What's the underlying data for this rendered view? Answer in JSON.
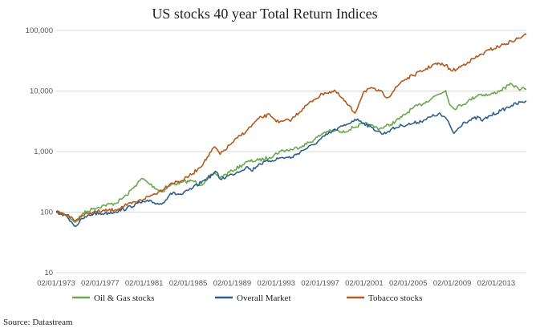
{
  "chart_data": {
    "type": "line",
    "title": "US stocks 40 year Total Return Indices",
    "y_scale": "log",
    "ylim": [
      10,
      100000
    ],
    "y_ticks": [
      {
        "value": 10,
        "label": "10"
      },
      {
        "value": 100,
        "label": "100"
      },
      {
        "value": 1000,
        "label": "1,000"
      },
      {
        "value": 10000,
        "label": "10,000"
      },
      {
        "value": 100000,
        "label": "100,000"
      }
    ],
    "xlim": [
      "1973-01-02",
      "2015-10-01"
    ],
    "x_ticks": [
      {
        "value": "1973-01-02",
        "label": "02/01/1973"
      },
      {
        "value": "1977-01-02",
        "label": "02/01/1977"
      },
      {
        "value": "1981-01-02",
        "label": "02/01/1981"
      },
      {
        "value": "1985-01-02",
        "label": "02/01/1985"
      },
      {
        "value": "1989-01-02",
        "label": "02/01/1989"
      },
      {
        "value": "1993-01-02",
        "label": "02/01/1993"
      },
      {
        "value": "1997-01-02",
        "label": "02/01/1997"
      },
      {
        "value": "2001-01-02",
        "label": "02/01/2001"
      },
      {
        "value": "2005-01-02",
        "label": "02/01/2005"
      },
      {
        "value": "2009-01-02",
        "label": "02/01/2009"
      },
      {
        "value": "2013-01-02",
        "label": "02/01/2013"
      }
    ],
    "grid": "horizontal",
    "legend_position": "bottom",
    "series": [
      {
        "name": "Oil & Gas stocks",
        "color": "#6aa84f",
        "points": [
          [
            "1973-01-02",
            100
          ],
          [
            "1973-07-01",
            95
          ],
          [
            "1974-01-01",
            90
          ],
          [
            "1974-10-01",
            68
          ],
          [
            "1975-06-01",
            95
          ],
          [
            "1976-06-01",
            115
          ],
          [
            "1977-06-01",
            130
          ],
          [
            "1978-06-01",
            140
          ],
          [
            "1979-06-01",
            190
          ],
          [
            "1980-03-01",
            270
          ],
          [
            "1980-11-01",
            360
          ],
          [
            "1981-06-01",
            300
          ],
          [
            "1982-08-01",
            215
          ],
          [
            "1983-06-01",
            280
          ],
          [
            "1984-06-01",
            310
          ],
          [
            "1985-06-01",
            330
          ],
          [
            "1986-03-01",
            280
          ],
          [
            "1987-06-01",
            450
          ],
          [
            "1987-12-01",
            370
          ],
          [
            "1989-01-01",
            480
          ],
          [
            "1990-06-01",
            680
          ],
          [
            "1991-06-01",
            720
          ],
          [
            "1992-06-01",
            800
          ],
          [
            "1993-06-01",
            1020
          ],
          [
            "1994-06-01",
            1080
          ],
          [
            "1995-06-01",
            1250
          ],
          [
            "1996-06-01",
            1550
          ],
          [
            "1997-06-01",
            2100
          ],
          [
            "1998-06-01",
            2250
          ],
          [
            "1999-01-01",
            2050
          ],
          [
            "2000-01-01",
            2500
          ],
          [
            "2001-01-01",
            2900
          ],
          [
            "2002-06-01",
            2400
          ],
          [
            "2003-06-01",
            2800
          ],
          [
            "2004-06-01",
            3700
          ],
          [
            "2005-06-01",
            5200
          ],
          [
            "2006-06-01",
            6300
          ],
          [
            "2007-06-01",
            8200
          ],
          [
            "2008-06-01",
            10200
          ],
          [
            "2008-11-01",
            5800
          ],
          [
            "2009-03-01",
            5100
          ],
          [
            "2010-06-01",
            6700
          ],
          [
            "2011-06-01",
            8800
          ],
          [
            "2012-06-01",
            8600
          ],
          [
            "2013-06-01",
            10300
          ],
          [
            "2014-06-01",
            13000
          ],
          [
            "2015-01-01",
            11000
          ],
          [
            "2015-10-01",
            10800
          ]
        ]
      },
      {
        "name": "Overall Market",
        "color": "#2e5f8a",
        "points": [
          [
            "1973-01-02",
            100
          ],
          [
            "1973-07-01",
            92
          ],
          [
            "1974-01-01",
            85
          ],
          [
            "1974-10-01",
            58
          ],
          [
            "1975-06-01",
            78
          ],
          [
            "1976-06-01",
            95
          ],
          [
            "1977-06-01",
            95
          ],
          [
            "1978-06-01",
            102
          ],
          [
            "1979-06-01",
            115
          ],
          [
            "1980-06-01",
            140
          ],
          [
            "1981-06-01",
            150
          ],
          [
            "1982-08-01",
            135
          ],
          [
            "1983-06-01",
            205
          ],
          [
            "1984-06-01",
            195
          ],
          [
            "1985-06-01",
            250
          ],
          [
            "1986-06-01",
            330
          ],
          [
            "1987-08-01",
            460
          ],
          [
            "1987-12-01",
            350
          ],
          [
            "1989-01-01",
            420
          ],
          [
            "1990-06-01",
            560
          ],
          [
            "1990-10-01",
            480
          ],
          [
            "1991-06-01",
            620
          ],
          [
            "1992-06-01",
            700
          ],
          [
            "1993-06-01",
            790
          ],
          [
            "1994-06-01",
            800
          ],
          [
            "1995-06-01",
            1050
          ],
          [
            "1996-06-01",
            1300
          ],
          [
            "1997-06-01",
            1800
          ],
          [
            "1998-06-01",
            2300
          ],
          [
            "1999-06-01",
            2800
          ],
          [
            "2000-03-01",
            3400
          ],
          [
            "2000-09-01",
            3200
          ],
          [
            "2001-09-01",
            2500
          ],
          [
            "2002-10-01",
            1950
          ],
          [
            "2003-06-01",
            2300
          ],
          [
            "2004-06-01",
            2700
          ],
          [
            "2005-06-01",
            2900
          ],
          [
            "2006-06-01",
            3300
          ],
          [
            "2007-10-01",
            4200
          ],
          [
            "2008-06-01",
            3600
          ],
          [
            "2009-03-01",
            2000
          ],
          [
            "2010-01-01",
            3000
          ],
          [
            "2011-06-01",
            3700
          ],
          [
            "2011-10-01",
            3200
          ],
          [
            "2012-06-01",
            3900
          ],
          [
            "2013-06-01",
            4700
          ],
          [
            "2014-06-01",
            5800
          ],
          [
            "2015-06-01",
            6600
          ],
          [
            "2015-10-01",
            6900
          ]
        ]
      },
      {
        "name": "Tobacco stocks",
        "color": "#b35a1f",
        "points": [
          [
            "1973-01-02",
            100
          ],
          [
            "1973-07-01",
            98
          ],
          [
            "1974-01-01",
            90
          ],
          [
            "1974-10-01",
            72
          ],
          [
            "1975-06-01",
            88
          ],
          [
            "1976-06-01",
            100
          ],
          [
            "1977-06-01",
            105
          ],
          [
            "1978-06-01",
            110
          ],
          [
            "1979-06-01",
            130
          ],
          [
            "1980-06-01",
            150
          ],
          [
            "1981-06-01",
            180
          ],
          [
            "1982-06-01",
            220
          ],
          [
            "1983-06-01",
            300
          ],
          [
            "1984-06-01",
            330
          ],
          [
            "1985-06-01",
            430
          ],
          [
            "1986-06-01",
            650
          ],
          [
            "1987-06-01",
            1200
          ],
          [
            "1987-12-01",
            900
          ],
          [
            "1989-01-01",
            1400
          ],
          [
            "1990-06-01",
            2300
          ],
          [
            "1991-06-01",
            3500
          ],
          [
            "1992-06-01",
            4100
          ],
          [
            "1993-04-01",
            3000
          ],
          [
            "1994-06-01",
            3400
          ],
          [
            "1995-06-01",
            5100
          ],
          [
            "1996-06-01",
            7200
          ],
          [
            "1997-06-01",
            9400
          ],
          [
            "1998-06-01",
            9800
          ],
          [
            "1999-06-01",
            6200
          ],
          [
            "2000-03-01",
            4300
          ],
          [
            "2000-12-01",
            9500
          ],
          [
            "2001-06-01",
            11000
          ],
          [
            "2002-06-01",
            10000
          ],
          [
            "2003-03-01",
            7800
          ],
          [
            "2004-06-01",
            14500
          ],
          [
            "2005-06-01",
            18000
          ],
          [
            "2006-06-01",
            22000
          ],
          [
            "2007-06-01",
            28000
          ],
          [
            "2008-06-01",
            27000
          ],
          [
            "2008-12-01",
            21500
          ],
          [
            "2009-06-01",
            23000
          ],
          [
            "2010-06-01",
            30000
          ],
          [
            "2011-06-01",
            38000
          ],
          [
            "2012-06-01",
            48000
          ],
          [
            "2013-06-01",
            56000
          ],
          [
            "2014-06-01",
            66000
          ],
          [
            "2015-06-01",
            80000
          ],
          [
            "2015-10-01",
            85000
          ]
        ]
      }
    ]
  },
  "source_text": "Source: Datastream"
}
